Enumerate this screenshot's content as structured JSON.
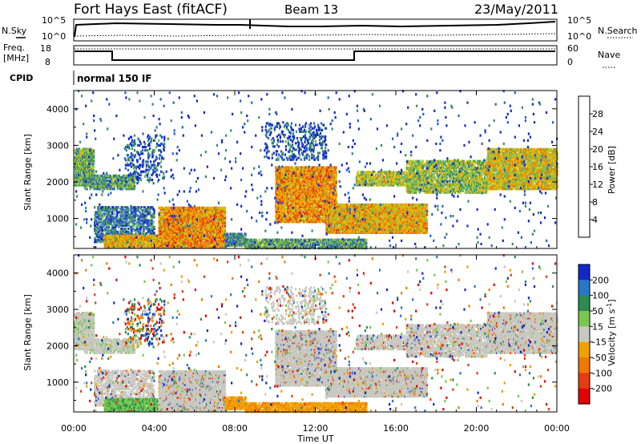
{
  "header": {
    "title": "Fort Hays East (fitACF)",
    "beam": "Beam 13",
    "date": "23/May/2011"
  },
  "summary_panels": {
    "nsky_label": "N.Sky",
    "nsearch_label": "N.Search",
    "count_ticks": [
      "10^5",
      "10^0"
    ],
    "freq_label_top": "Freq.",
    "freq_label_bottom": "[MHz]",
    "freq_ticks": [
      18,
      8
    ],
    "nave_label": "Nave",
    "nave_ticks": [
      60,
      0
    ],
    "cpid_label": "CPID",
    "cpid_value": "normal 150 IF"
  },
  "chart_data": [
    {
      "type": "heatmap",
      "name": "power",
      "ylabel": "Slant Range [km]",
      "xlabel": "",
      "x_ticks": [
        "00:00",
        "04:00",
        "08:00",
        "12:00",
        "16:00",
        "20:00",
        "00:00"
      ],
      "xlim_hours": [
        0,
        24
      ],
      "y_ticks": [
        1000,
        2000,
        3000,
        4000
      ],
      "ylim": [
        180,
        4500
      ],
      "colorbar": {
        "label": "Power [dB]",
        "ticks": [
          4,
          8,
          12,
          16,
          20,
          24,
          28
        ],
        "range": [
          0,
          32
        ],
        "colors": [
          "#1428d2",
          "#2860c8",
          "#3c8c64",
          "#64b464",
          "#b4c828",
          "#f0b400",
          "#f07800",
          "#e62814"
        ]
      }
    },
    {
      "type": "heatmap",
      "name": "velocity",
      "ylabel": "Slant Range [km]",
      "xlabel": "Time UT",
      "x_ticks": [
        "00:00",
        "04:00",
        "08:00",
        "12:00",
        "16:00",
        "20:00",
        "00:00"
      ],
      "xlim_hours": [
        0,
        24
      ],
      "y_ticks": [
        1000,
        2000,
        3000,
        4000
      ],
      "ylim": [
        180,
        4500
      ],
      "colorbar": {
        "label": "Velocity [m s^-1]",
        "ticks": [
          200,
          100,
          50,
          15,
          -15,
          -50,
          -100,
          -200
        ],
        "colors": [
          "#1428c8",
          "#2878c8",
          "#2c8c50",
          "#78c850",
          "#c8c8c0",
          "#f0a000",
          "#f07800",
          "#e63c14",
          "#e60000"
        ]
      }
    }
  ]
}
